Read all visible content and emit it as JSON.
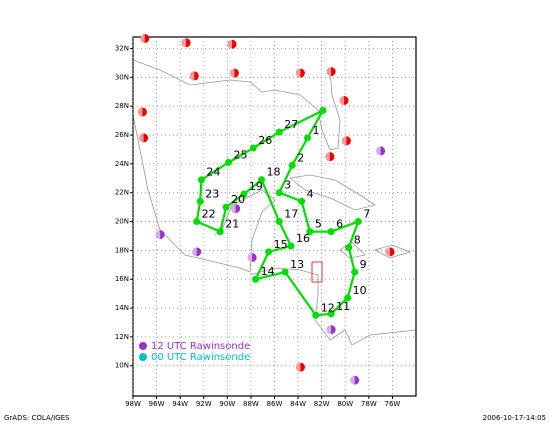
{
  "chart_data": {
    "type": "map",
    "xlim": [
      -98,
      -74
    ],
    "ylim": [
      7.9,
      32.8
    ],
    "xticks": [
      {
        "value": -98,
        "label": "98W"
      },
      {
        "value": -96,
        "label": "96W"
      },
      {
        "value": -94,
        "label": "94W"
      },
      {
        "value": -92,
        "label": "92W"
      },
      {
        "value": -90,
        "label": "90W"
      },
      {
        "value": -88,
        "label": "88W"
      },
      {
        "value": -86,
        "label": "86W"
      },
      {
        "value": -84,
        "label": "84W"
      },
      {
        "value": -82,
        "label": "82W"
      },
      {
        "value": -80,
        "label": "80W"
      },
      {
        "value": -78,
        "label": "78W"
      },
      {
        "value": -76,
        "label": "76W"
      }
    ],
    "yticks": [
      {
        "value": 10,
        "label": "10N"
      },
      {
        "value": 12,
        "label": "12N"
      },
      {
        "value": 14,
        "label": "14N"
      },
      {
        "value": 16,
        "label": "16N"
      },
      {
        "value": 18,
        "label": "18N"
      },
      {
        "value": 20,
        "label": "20N"
      },
      {
        "value": 22,
        "label": "22N"
      },
      {
        "value": 24,
        "label": "24N"
      },
      {
        "value": 26,
        "label": "26N"
      },
      {
        "value": 28,
        "label": "28N"
      },
      {
        "value": 30,
        "label": "30N"
      },
      {
        "value": 32,
        "label": "32N"
      }
    ],
    "grid": true,
    "track": {
      "color": "#00dd00",
      "labels": [
        null,
        "1",
        "2",
        "3",
        "4",
        "5",
        "6",
        "7",
        "8",
        "9",
        "10",
        "11",
        "12",
        "13",
        "14",
        "15",
        "16",
        "17",
        "18",
        "19",
        "20",
        "21",
        "22",
        "23",
        "24",
        "25",
        "26",
        "27",
        null
      ],
      "lon": [
        -81.9,
        -83.2,
        -84.5,
        -85.6,
        -83.7,
        -83.0,
        -81.2,
        -78.9,
        -79.7,
        -79.2,
        -79.8,
        -81.2,
        -82.5,
        -85.1,
        -87.6,
        -86.5,
        -84.6,
        -85.6,
        -87.1,
        -88.6,
        -90.1,
        -90.6,
        -92.6,
        -92.3,
        -92.2,
        -89.9,
        -87.8,
        -85.6,
        -81.9
      ],
      "lat": [
        27.7,
        25.8,
        23.9,
        22.0,
        21.4,
        19.3,
        19.3,
        20.0,
        18.2,
        16.5,
        14.7,
        13.6,
        13.5,
        16.5,
        16.0,
        17.9,
        18.3,
        20.0,
        22.9,
        21.9,
        21.0,
        19.3,
        20.0,
        21.4,
        22.9,
        24.1,
        25.1,
        26.2,
        27.7
      ]
    },
    "series": [
      {
        "name": "12 UTC Rawinsonde",
        "color": "#9932cc",
        "lon": [
          -77.0,
          -95.7,
          -89.3,
          -92.6,
          -87.9,
          -81.2,
          -79.2
        ],
        "lat": [
          24.9,
          19.1,
          20.9,
          17.9,
          17.5,
          12.5,
          9.0
        ]
      },
      {
        "name": "00 UTC Rawinsonde",
        "color": "#00c0c0",
        "lon": [],
        "lat": []
      }
    ],
    "stations": {
      "color": "#ee0000",
      "lon": [
        -97.0,
        -93.5,
        -89.6,
        -92.8,
        -89.4,
        -83.8,
        -81.2,
        -80.1,
        -97.2,
        -97.1,
        -79.9,
        -81.3,
        -76.2,
        -83.8
      ],
      "lat": [
        32.7,
        32.4,
        32.3,
        30.1,
        30.3,
        30.3,
        30.4,
        28.4,
        27.6,
        25.8,
        25.6,
        24.5,
        17.9,
        9.9
      ]
    },
    "footer_left": "GrADS: COLA/IGES",
    "footer_right": "2006-10-17-14:05"
  }
}
